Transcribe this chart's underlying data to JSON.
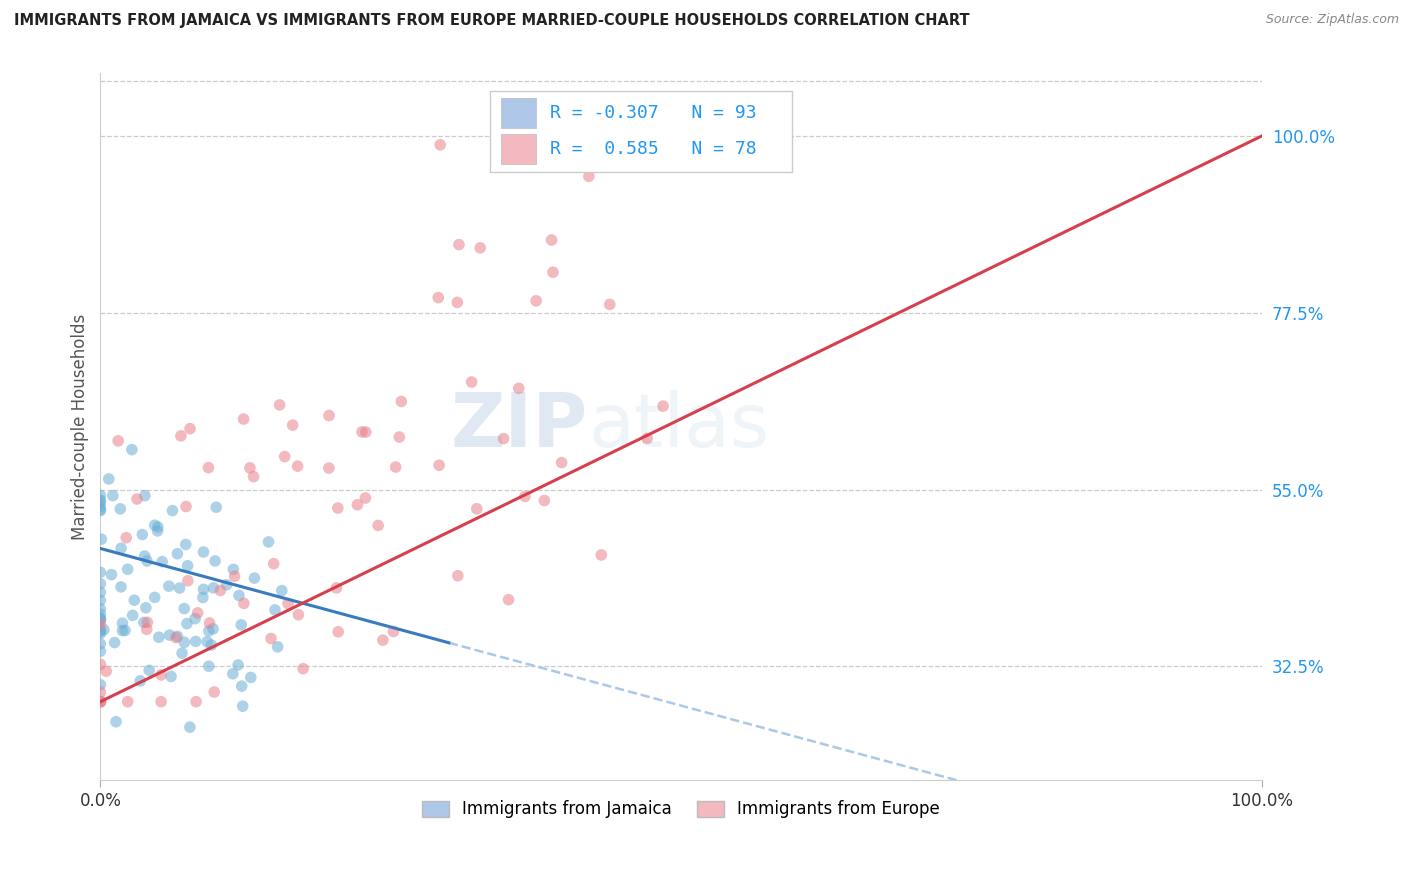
{
  "title": "IMMIGRANTS FROM JAMAICA VS IMMIGRANTS FROM EUROPE MARRIED-COUPLE HOUSEHOLDS CORRELATION CHART",
  "source": "Source: ZipAtlas.com",
  "ylabel": "Married-couple Households",
  "xlim": [
    0.0,
    1.0
  ],
  "ylim": [
    0.18,
    1.08
  ],
  "xtick_labels": [
    "0.0%",
    "100.0%"
  ],
  "ytick_labels": [
    "32.5%",
    "55.0%",
    "77.5%",
    "100.0%"
  ],
  "ytick_values": [
    0.325,
    0.55,
    0.775,
    1.0
  ],
  "legend_items": [
    {
      "label": "Immigrants from Jamaica",
      "color": "#aec6e8"
    },
    {
      "label": "Immigrants from Europe",
      "color": "#f4b8c1"
    }
  ],
  "series": [
    {
      "name": "Jamaica",
      "R": -0.307,
      "N": 93,
      "scatter_color": "#6baed6",
      "line_color": "#3a7abf",
      "dash_color": "#aac8e8"
    },
    {
      "name": "Europe",
      "R": 0.585,
      "N": 78,
      "scatter_color": "#e8808a",
      "line_color": "#d6404e"
    }
  ],
  "watermark_zip": "ZIP",
  "watermark_atlas": "atlas",
  "background_color": "#ffffff",
  "grid_color": "#cccccc",
  "title_color": "#222222",
  "axis_label_color": "#555555",
  "ytick_color": "#2196F3",
  "xtick_color": "#333333",
  "legend_R_color": "#2196F3",
  "legend_box_edge": "#cccccc"
}
